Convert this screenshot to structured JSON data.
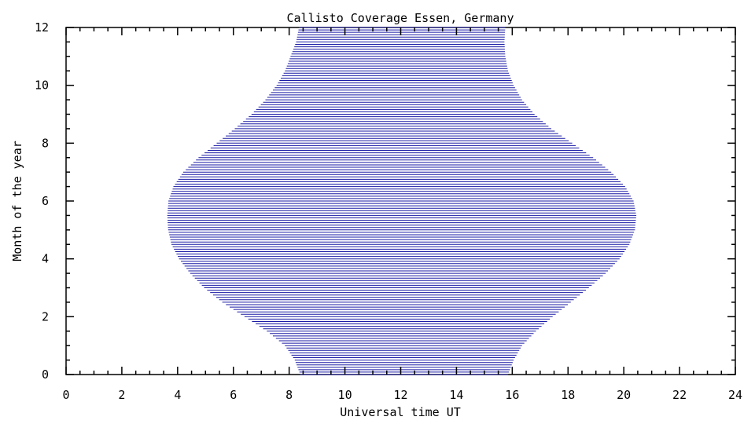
{
  "chart_data": {
    "type": "area",
    "title": "Callisto Coverage Essen, Germany",
    "xlabel": "Universal time UT",
    "ylabel": "Month of the year",
    "xlim": [
      0,
      24
    ],
    "ylim": [
      0,
      12
    ],
    "x_ticks": [
      "0",
      "2",
      "4",
      "6",
      "8",
      "10",
      "12",
      "14",
      "16",
      "18",
      "20",
      "22",
      "24"
    ],
    "y_ticks": [
      "0",
      "2",
      "4",
      "6",
      "8",
      "10",
      "12"
    ],
    "fill_color": "#1a1aa6",
    "fill_style": "horizontal-hatch",
    "grid": false,
    "series": [
      {
        "month": [
          0,
          0.5,
          1,
          1.5,
          2,
          2.5,
          3,
          3.5,
          4,
          4.5,
          5,
          5.5,
          6,
          6.5,
          7,
          7.5,
          8,
          8.5,
          9,
          9.5,
          10,
          10.5,
          11,
          11.5,
          12
        ],
        "start_ut": [
          8.4,
          8.2,
          7.85,
          7.2,
          6.4,
          5.6,
          4.95,
          4.45,
          4.05,
          3.78,
          3.66,
          3.63,
          3.67,
          3.85,
          4.2,
          4.75,
          5.4,
          6.05,
          6.65,
          7.15,
          7.55,
          7.85,
          8.05,
          8.25,
          8.35
        ],
        "end_ut": [
          15.85,
          16.05,
          16.35,
          16.85,
          17.45,
          18.1,
          18.75,
          19.35,
          19.85,
          20.2,
          20.4,
          20.45,
          20.35,
          20.05,
          19.55,
          18.9,
          18.15,
          17.4,
          16.8,
          16.35,
          16.05,
          15.85,
          15.75,
          15.72,
          15.75
        ]
      }
    ]
  }
}
